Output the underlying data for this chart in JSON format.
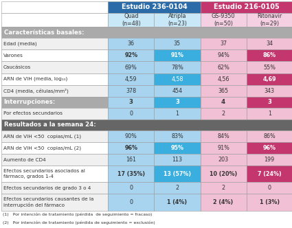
{
  "col_headers": [
    "Quad\n(n=48)",
    "Atripla\n(n=23)",
    "GS-9350\n(n=50)",
    "Ritonavir\n(n=29)"
  ],
  "footnotes": [
    "(1)   Por intención de tratamiento (pérdida  de seguimiento = fracaso)",
    "(2)   Por intención de tratamiento (pérdida de seguimiento = exclusión)"
  ],
  "colors": {
    "header_blue": "#2B6CA8",
    "header_pink": "#C4366E",
    "col1_light": "#A8D4F0",
    "col2_bright": "#3BAEE0",
    "col3_light": "#F2C0D4",
    "col4_magenta": "#C4366E",
    "section_gray_light": "#AAAAAA",
    "section_gray_dark": "#666666",
    "row_bg": "#FFFFFF",
    "text_dark": "#333333",
    "text_white": "#FFFFFF"
  },
  "rows": [
    {
      "type": "section_header_gray",
      "label": "Características basales:",
      "dark": false
    },
    {
      "type": "data",
      "label": "Edad (media)",
      "vals": [
        "36",
        "35",
        "37",
        "34"
      ],
      "alt": false,
      "bolds": [
        false,
        false,
        false,
        false
      ]
    },
    {
      "type": "data",
      "label": "Varones",
      "vals": [
        "92%",
        "91%",
        "94%",
        "86%"
      ],
      "alt": true,
      "bolds": [
        true,
        true,
        false,
        true
      ]
    },
    {
      "type": "data",
      "label": "Caucásicos",
      "vals": [
        "69%",
        "78%",
        "62%",
        "55%"
      ],
      "alt": false,
      "bolds": [
        false,
        false,
        false,
        false
      ]
    },
    {
      "type": "data",
      "label": "ARN de VIH (media, log₁₀)",
      "vals": [
        "4,59",
        "4,58",
        "4,56",
        "4,69"
      ],
      "alt": true,
      "bolds": [
        false,
        false,
        false,
        true
      ]
    },
    {
      "type": "data",
      "label": "CD4 (media, células/mm²)",
      "vals": [
        "378",
        "454",
        "365",
        "343"
      ],
      "alt": false,
      "bolds": [
        false,
        false,
        false,
        false
      ]
    },
    {
      "type": "section_data",
      "label": "Interrupciones:",
      "vals": [
        "3",
        "3",
        "4",
        "3"
      ],
      "bolds": [
        true,
        true,
        true,
        true
      ]
    },
    {
      "type": "data",
      "label": "Por efectos secundarios",
      "vals": [
        "0",
        "1",
        "2",
        "1"
      ],
      "alt": false,
      "bolds": [
        false,
        false,
        false,
        false
      ]
    },
    {
      "type": "section_header_gray",
      "label": "Resultados a la semana 24:",
      "dark": true
    },
    {
      "type": "data",
      "label": "ARN de VIH <50  copias/mL (1)",
      "vals": [
        "90%",
        "83%",
        "84%",
        "86%"
      ],
      "alt": false,
      "bolds": [
        false,
        false,
        false,
        false
      ]
    },
    {
      "type": "data",
      "label": "ARN de VIH <50  copias/mL (2)",
      "vals": [
        "96%",
        "95%",
        "91%",
        "96%"
      ],
      "alt": true,
      "bolds": [
        true,
        true,
        false,
        true
      ]
    },
    {
      "type": "data",
      "label": "Aumento de CD4",
      "vals": [
        "161",
        "113",
        "203",
        "199"
      ],
      "alt": false,
      "bolds": [
        false,
        false,
        false,
        false
      ]
    },
    {
      "type": "data_tall",
      "label": "Efectos secundarios asociados al\nfármaco, grados 1-4",
      "vals": [
        "17 (35%)",
        "13 (57%)",
        "10 (20%)",
        "7 (24%)"
      ],
      "alt": true,
      "bolds": [
        true,
        true,
        true,
        true
      ]
    },
    {
      "type": "data",
      "label": "Efectos secundarios de grado 3 o 4",
      "vals": [
        "0",
        "2",
        "2",
        "0"
      ],
      "alt": false,
      "bolds": [
        false,
        false,
        false,
        false
      ]
    },
    {
      "type": "data_tall",
      "label": "Efectos secundarios causantes de la\ninterrupción del fármaco",
      "vals": [
        "0",
        "1 (4%)",
        "2 (4%)",
        "1 (3%)"
      ],
      "alt": false,
      "bolds": [
        false,
        true,
        true,
        true
      ]
    }
  ]
}
